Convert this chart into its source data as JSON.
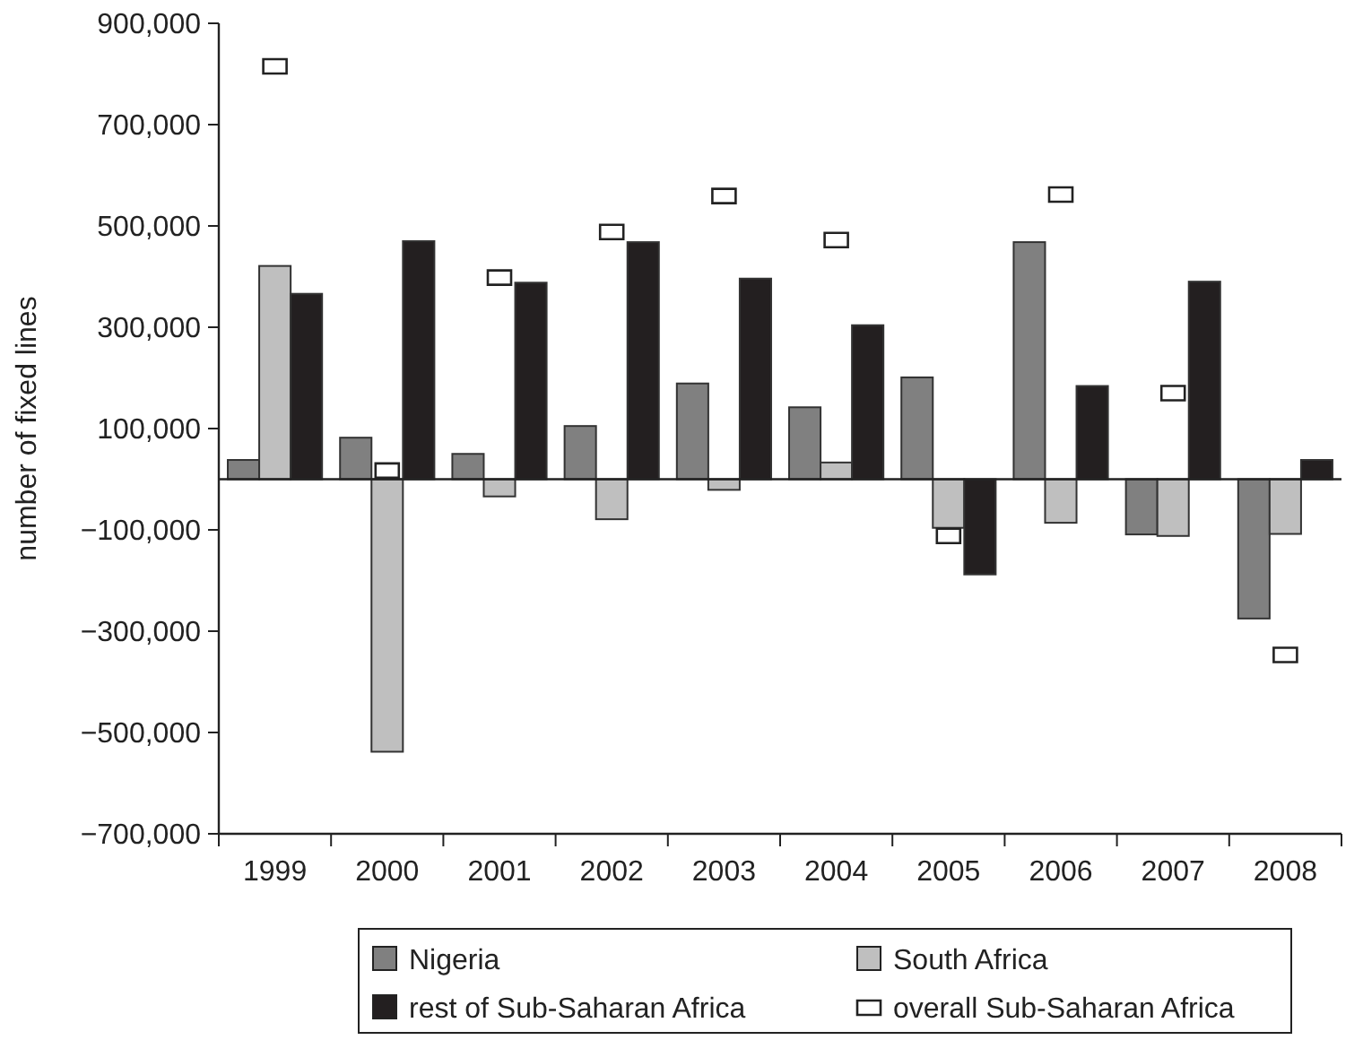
{
  "chart_data": {
    "type": "bar",
    "ylabel": "number of fixed lines",
    "categories": [
      "1999",
      "2000",
      "2001",
      "2002",
      "2003",
      "2004",
      "2005",
      "2006",
      "2007",
      "2008"
    ],
    "series": [
      {
        "name": "Nigeria",
        "color": "#808080",
        "values": [
          38000,
          82000,
          50000,
          105000,
          189000,
          142000,
          201000,
          468000,
          -109000,
          -275000
        ]
      },
      {
        "name": "South Africa",
        "color": "#bfbfbf",
        "values": [
          421000,
          -538000,
          -34000,
          -79000,
          -21000,
          33000,
          -96000,
          -86000,
          -112000,
          -108000
        ]
      },
      {
        "name": "rest of Sub-Saharan Africa",
        "color": "#231f20",
        "values": [
          366000,
          470000,
          388000,
          468000,
          396000,
          304000,
          -188000,
          184000,
          390000,
          38000
        ]
      },
      {
        "name": "overall Sub-Saharan Africa",
        "color": "#ffffff",
        "type": "scatter",
        "marker": "square",
        "values": [
          815000,
          17000,
          398000,
          488000,
          559000,
          472000,
          -112000,
          562000,
          170000,
          -347000
        ]
      }
    ],
    "ylim": [
      -700000,
      900000
    ],
    "yticks": [
      {
        "value": -700000,
        "label": "−700,000"
      },
      {
        "value": -500000,
        "label": "−500,000"
      },
      {
        "value": -300000,
        "label": "−300,000"
      },
      {
        "value": -100000,
        "label": "−100,000"
      },
      {
        "value": 100000,
        "label": "100,000"
      },
      {
        "value": 300000,
        "label": "300,000"
      },
      {
        "value": 500000,
        "label": "500,000"
      },
      {
        "value": 700000,
        "label": "700,000"
      },
      {
        "value": 900000,
        "label": "900,000"
      }
    ],
    "grid": false,
    "legend": "bottom"
  }
}
